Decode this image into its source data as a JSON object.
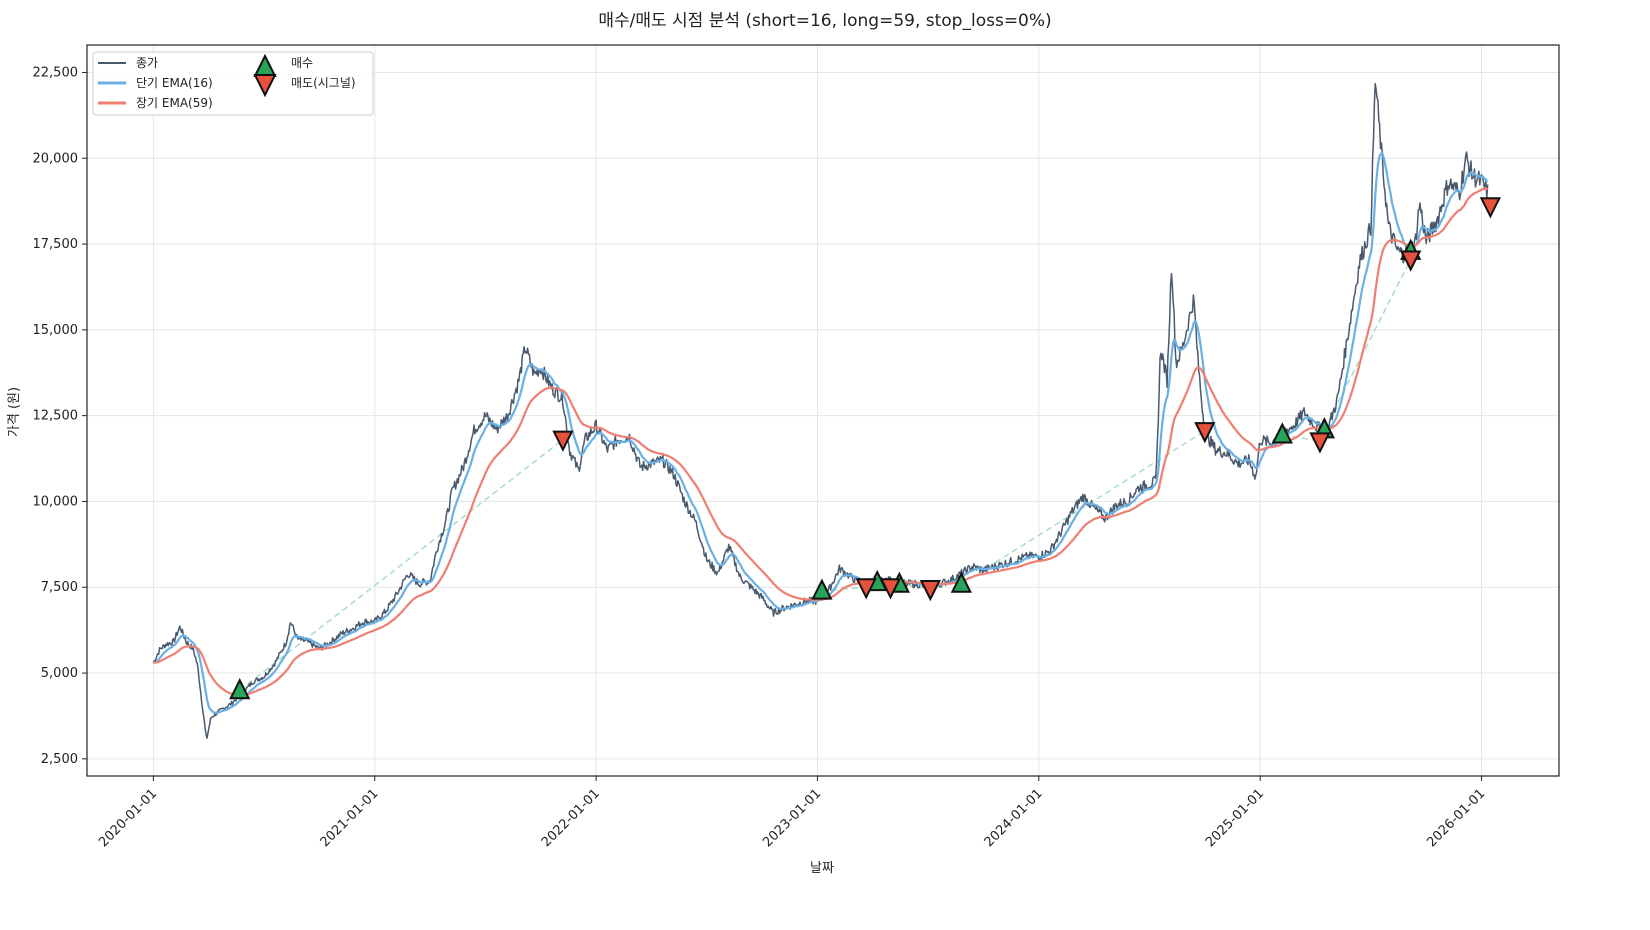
{
  "chart_data": {
    "type": "line",
    "title": "매수/매도 시점 분석 (short=16, long=59, stop_loss=0%)",
    "xlabel": "날짜",
    "ylabel": "가격 (원)",
    "xlim": [
      2019.7,
      2026.35
    ],
    "ylim": [
      2000,
      23300
    ],
    "grid": true,
    "legend_position": "top-left",
    "x_ticks": [
      {
        "value": 2020,
        "label": "2020-01-01"
      },
      {
        "value": 2021,
        "label": "2021-01-01"
      },
      {
        "value": 2022,
        "label": "2022-01-01"
      },
      {
        "value": 2023,
        "label": "2023-01-01"
      },
      {
        "value": 2024,
        "label": "2024-01-01"
      },
      {
        "value": 2025,
        "label": "2025-01-01"
      },
      {
        "value": 2026,
        "label": "2026-01-01"
      }
    ],
    "y_ticks": [
      {
        "value": 2500,
        "label": "2,500"
      },
      {
        "value": 5000,
        "label": "5,000"
      },
      {
        "value": 7500,
        "label": "7,500"
      },
      {
        "value": 10000,
        "label": "10,000"
      },
      {
        "value": 12500,
        "label": "12,500"
      },
      {
        "value": 15000,
        "label": "15,000"
      },
      {
        "value": 17500,
        "label": "17,500"
      },
      {
        "value": 20000,
        "label": "20,000"
      },
      {
        "value": 22500,
        "label": "22,500"
      }
    ],
    "legend": {
      "close": "종가",
      "ema_short": "단기 EMA(16)",
      "ema_long": "장기 EMA(59)",
      "buy": "매수",
      "sell": "매도(시그널)"
    },
    "colors": {
      "close": "#4a5a6e",
      "ema_short": "#6ab0e4",
      "ema_long": "#ee7f72",
      "buy": "#27a35a",
      "sell": "#e8513e",
      "trade": "#a8dcc4"
    },
    "ema_spans": {
      "short": 16,
      "long": 59
    },
    "close": [
      [
        2020.0,
        5300
      ],
      [
        2020.03,
        5700
      ],
      [
        2020.06,
        5850
      ],
      [
        2020.09,
        5900
      ],
      [
        2020.12,
        6350
      ],
      [
        2020.15,
        5900
      ],
      [
        2020.18,
        5700
      ],
      [
        2020.2,
        5200
      ],
      [
        2020.22,
        4100
      ],
      [
        2020.24,
        3050
      ],
      [
        2020.26,
        3700
      ],
      [
        2020.3,
        3900
      ],
      [
        2020.35,
        4100
      ],
      [
        2020.4,
        4400
      ],
      [
        2020.45,
        4750
      ],
      [
        2020.5,
        4900
      ],
      [
        2020.55,
        5300
      ],
      [
        2020.6,
        5900
      ],
      [
        2020.62,
        6500
      ],
      [
        2020.65,
        6000
      ],
      [
        2020.7,
        5900
      ],
      [
        2020.75,
        5700
      ],
      [
        2020.8,
        5900
      ],
      [
        2020.85,
        6150
      ],
      [
        2020.9,
        6300
      ],
      [
        2020.95,
        6500
      ],
      [
        2021.0,
        6500
      ],
      [
        2021.05,
        6800
      ],
      [
        2021.1,
        7300
      ],
      [
        2021.15,
        7900
      ],
      [
        2021.2,
        7600
      ],
      [
        2021.25,
        7700
      ],
      [
        2021.28,
        8600
      ],
      [
        2021.32,
        9400
      ],
      [
        2021.35,
        10300
      ],
      [
        2021.4,
        11000
      ],
      [
        2021.45,
        12100
      ],
      [
        2021.5,
        12500
      ],
      [
        2021.55,
        12100
      ],
      [
        2021.6,
        12500
      ],
      [
        2021.65,
        13500
      ],
      [
        2021.68,
        14500
      ],
      [
        2021.72,
        13700
      ],
      [
        2021.75,
        13900
      ],
      [
        2021.8,
        13300
      ],
      [
        2021.85,
        13000
      ],
      [
        2021.88,
        11500
      ],
      [
        2021.92,
        10900
      ],
      [
        2021.95,
        11800
      ],
      [
        2022.0,
        12200
      ],
      [
        2022.05,
        11500
      ],
      [
        2022.1,
        11800
      ],
      [
        2022.15,
        11900
      ],
      [
        2022.2,
        11000
      ],
      [
        2022.25,
        11100
      ],
      [
        2022.3,
        11200
      ],
      [
        2022.35,
        10800
      ],
      [
        2022.4,
        10000
      ],
      [
        2022.45,
        9400
      ],
      [
        2022.5,
        8300
      ],
      [
        2022.55,
        7900
      ],
      [
        2022.6,
        8700
      ],
      [
        2022.65,
        7800
      ],
      [
        2022.7,
        7500
      ],
      [
        2022.75,
        7200
      ],
      [
        2022.8,
        6750
      ],
      [
        2022.85,
        6900
      ],
      [
        2022.9,
        7000
      ],
      [
        2022.95,
        7100
      ],
      [
        2023.0,
        7100
      ],
      [
        2023.05,
        7400
      ],
      [
        2023.1,
        8050
      ],
      [
        2023.15,
        7800
      ],
      [
        2023.2,
        7600
      ],
      [
        2023.25,
        7600
      ],
      [
        2023.3,
        7700
      ],
      [
        2023.35,
        7700
      ],
      [
        2023.4,
        7600
      ],
      [
        2023.45,
        7600
      ],
      [
        2023.5,
        7500
      ],
      [
        2023.55,
        7600
      ],
      [
        2023.6,
        7700
      ],
      [
        2023.65,
        7900
      ],
      [
        2023.7,
        8100
      ],
      [
        2023.75,
        8000
      ],
      [
        2023.8,
        8100
      ],
      [
        2023.85,
        8200
      ],
      [
        2023.9,
        8300
      ],
      [
        2023.95,
        8400
      ],
      [
        2024.0,
        8400
      ],
      [
        2024.05,
        8550
      ],
      [
        2024.1,
        9100
      ],
      [
        2024.15,
        9700
      ],
      [
        2024.2,
        10150
      ],
      [
        2024.25,
        9800
      ],
      [
        2024.3,
        9500
      ],
      [
        2024.35,
        9900
      ],
      [
        2024.4,
        10000
      ],
      [
        2024.45,
        10400
      ],
      [
        2024.5,
        10500
      ],
      [
        2024.53,
        10600
      ],
      [
        2024.55,
        14500
      ],
      [
        2024.58,
        13500
      ],
      [
        2024.6,
        17000
      ],
      [
        2024.62,
        14000
      ],
      [
        2024.65,
        14500
      ],
      [
        2024.7,
        15900
      ],
      [
        2024.72,
        14000
      ],
      [
        2024.75,
        12000
      ],
      [
        2024.8,
        11500
      ],
      [
        2024.85,
        11400
      ],
      [
        2024.9,
        11100
      ],
      [
        2024.95,
        11200
      ],
      [
        2024.98,
        10700
      ],
      [
        2025.0,
        11800
      ],
      [
        2025.05,
        11700
      ],
      [
        2025.1,
        12000
      ],
      [
        2025.15,
        12200
      ],
      [
        2025.2,
        12600
      ],
      [
        2025.25,
        12200
      ],
      [
        2025.3,
        12000
      ],
      [
        2025.35,
        13000
      ],
      [
        2025.4,
        15000
      ],
      [
        2025.45,
        17000
      ],
      [
        2025.5,
        18000
      ],
      [
        2025.52,
        22300
      ],
      [
        2025.55,
        20000
      ],
      [
        2025.58,
        18000
      ],
      [
        2025.62,
        17300
      ],
      [
        2025.65,
        17200
      ],
      [
        2025.7,
        17500
      ],
      [
        2025.72,
        18700
      ],
      [
        2025.75,
        17600
      ],
      [
        2025.8,
        18200
      ],
      [
        2025.85,
        19300
      ],
      [
        2025.9,
        19000
      ],
      [
        2025.93,
        20000
      ],
      [
        2025.96,
        19500
      ],
      [
        2026.0,
        19300
      ],
      [
        2026.03,
        19000
      ]
    ],
    "buy_signals": [
      [
        2020.39,
        4500
      ],
      [
        2023.02,
        7400
      ],
      [
        2023.27,
        7650
      ],
      [
        2023.37,
        7600
      ],
      [
        2023.65,
        7600
      ],
      [
        2025.1,
        11950
      ],
      [
        2025.29,
        12100
      ],
      [
        2025.68,
        17300
      ]
    ],
    "sell_signals": [
      [
        2021.85,
        11800
      ],
      [
        2023.22,
        7500
      ],
      [
        2023.33,
        7500
      ],
      [
        2023.51,
        7450
      ],
      [
        2024.75,
        12050
      ],
      [
        2025.27,
        11750
      ],
      [
        2025.68,
        17050
      ],
      [
        2026.04,
        18600
      ]
    ]
  }
}
